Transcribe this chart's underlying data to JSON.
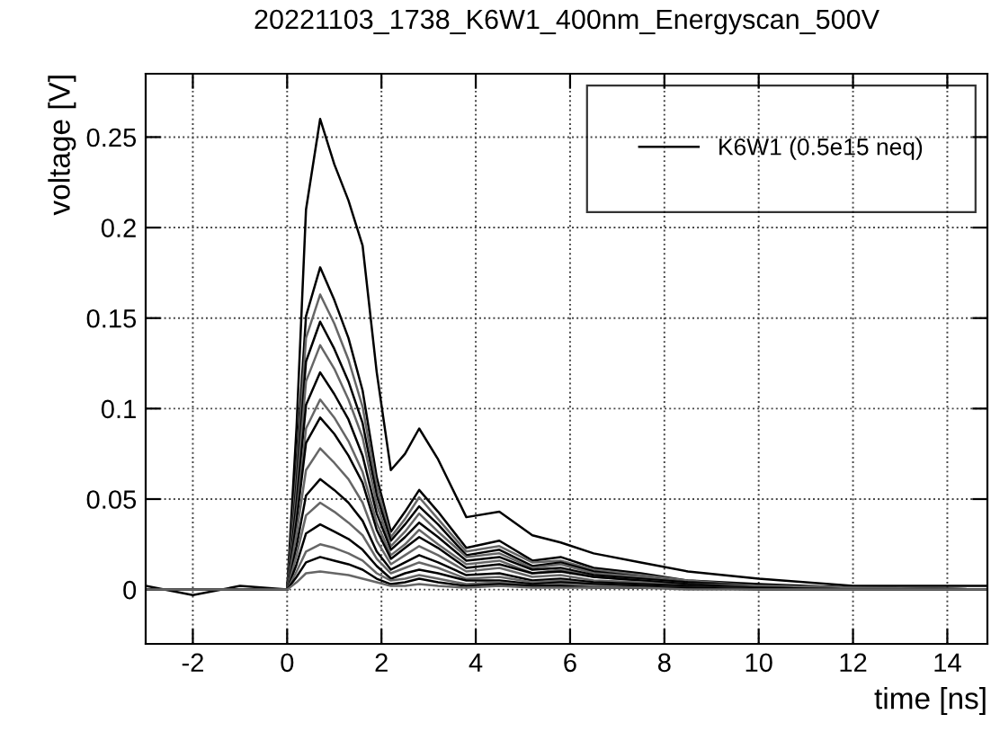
{
  "chart_data": {
    "type": "line",
    "title": "20221103_1738_K6W1_400nm_Energyscan_500V",
    "xlabel": "time [ns]",
    "ylabel": "voltage [V]",
    "x": [
      -3,
      -2,
      -1,
      0,
      0.2,
      0.4,
      0.7,
      1.0,
      1.3,
      1.6,
      1.9,
      2.2,
      2.5,
      2.8,
      3.2,
      3.8,
      4.5,
      5.2,
      5.8,
      6.5,
      7.5,
      8.5,
      10,
      12,
      14.85
    ],
    "xlim": [
      -3,
      14.85
    ],
    "xticks": [
      -2,
      0,
      2,
      4,
      6,
      8,
      10,
      12,
      14
    ],
    "ylim": [
      -0.03,
      0.285
    ],
    "yticks": [
      0,
      0.05,
      0.1,
      0.15,
      0.2,
      0.25
    ],
    "grid": true,
    "legend": "top right",
    "line_style": "solid",
    "marker": "none",
    "series": [
      {
        "name": "K6W1 (0.5e15 neq)",
        "color": "#000000",
        "values": [
          0.002,
          -0.003,
          0.002,
          0,
          0.09,
          0.21,
          0.26,
          0.235,
          0.215,
          0.19,
          0.12,
          0.066,
          0.075,
          0.089,
          0.072,
          0.04,
          0.043,
          0.03,
          0.026,
          0.02,
          0.015,
          0.01,
          0.006,
          0.002,
          0.002
        ]
      },
      {
        "color": "#000000",
        "values": [
          0,
          0,
          0,
          0,
          0.071,
          0.151,
          0.178,
          0.16,
          0.139,
          0.11,
          0.062,
          0.032,
          0.043,
          0.055,
          0.043,
          0.023,
          0.027,
          0.016,
          0.018,
          0.012,
          0.009,
          0.005,
          0.003,
          0.001,
          0
        ]
      },
      {
        "color": "#666666",
        "values": [
          0,
          0,
          0,
          0,
          0.065,
          0.139,
          0.163,
          0.147,
          0.127,
          0.101,
          0.057,
          0.029,
          0.039,
          0.051,
          0.039,
          0.021,
          0.024,
          0.015,
          0.016,
          0.011,
          0.008,
          0.005,
          0.002,
          0.001,
          0
        ]
      },
      {
        "color": "#000000",
        "values": [
          0,
          0,
          0,
          0,
          0.059,
          0.126,
          0.148,
          0.133,
          0.115,
          0.092,
          0.052,
          0.027,
          0.036,
          0.046,
          0.036,
          0.019,
          0.022,
          0.013,
          0.015,
          0.01,
          0.007,
          0.004,
          0.002,
          0.001,
          0
        ]
      },
      {
        "color": "#666666",
        "values": [
          0,
          0,
          0,
          0,
          0.054,
          0.115,
          0.135,
          0.122,
          0.105,
          0.084,
          0.047,
          0.024,
          0.032,
          0.042,
          0.032,
          0.018,
          0.02,
          0.012,
          0.014,
          0.009,
          0.007,
          0.004,
          0.002,
          0.001,
          0
        ]
      },
      {
        "color": "#000000",
        "values": [
          0,
          0,
          0,
          0,
          0.048,
          0.102,
          0.12,
          0.108,
          0.094,
          0.074,
          0.042,
          0.022,
          0.029,
          0.037,
          0.029,
          0.016,
          0.018,
          0.011,
          0.012,
          0.008,
          0.006,
          0.004,
          0.002,
          0.001,
          0
        ]
      },
      {
        "color": "#666666",
        "values": [
          0,
          0,
          0,
          0,
          0.042,
          0.089,
          0.105,
          0.095,
          0.082,
          0.065,
          0.037,
          0.019,
          0.025,
          0.033,
          0.025,
          0.014,
          0.016,
          0.009,
          0.011,
          0.007,
          0.005,
          0.003,
          0.002,
          0.001,
          0
        ]
      },
      {
        "color": "#000000",
        "values": [
          0,
          0,
          0,
          0,
          0.038,
          0.081,
          0.095,
          0.086,
          0.074,
          0.059,
          0.033,
          0.017,
          0.023,
          0.029,
          0.023,
          0.012,
          0.014,
          0.009,
          0.01,
          0.007,
          0.005,
          0.003,
          0.001,
          0,
          0
        ]
      },
      {
        "color": "#666666",
        "values": [
          0,
          0,
          0,
          0,
          0.031,
          0.066,
          0.078,
          0.07,
          0.061,
          0.048,
          0.027,
          0.014,
          0.019,
          0.024,
          0.019,
          0.01,
          0.012,
          0.007,
          0.008,
          0.005,
          0.004,
          0.002,
          0.001,
          0,
          0
        ]
      },
      {
        "color": "#000000",
        "values": [
          0,
          0,
          0,
          0,
          0.024,
          0.052,
          0.061,
          0.055,
          0.048,
          0.038,
          0.021,
          0.011,
          0.015,
          0.019,
          0.015,
          0.008,
          0.009,
          0.005,
          0.006,
          0.004,
          0.003,
          0.002,
          0.001,
          0,
          0
        ]
      },
      {
        "color": "#666666",
        "values": [
          0,
          0,
          0,
          0,
          0.019,
          0.041,
          0.048,
          0.043,
          0.037,
          0.03,
          0.017,
          0.009,
          0.012,
          0.015,
          0.012,
          0.006,
          0.007,
          0.004,
          0.005,
          0.003,
          0.002,
          0.001,
          0.001,
          0,
          0
        ]
      },
      {
        "color": "#000000",
        "values": [
          0,
          0,
          0,
          0,
          0.014,
          0.031,
          0.036,
          0.032,
          0.028,
          0.022,
          0.013,
          0.006,
          0.009,
          0.011,
          0.009,
          0.005,
          0.005,
          0.003,
          0.004,
          0.003,
          0.002,
          0.001,
          0.001,
          0,
          0
        ]
      },
      {
        "color": "#666666",
        "values": [
          0,
          0,
          0,
          0,
          0.01,
          0.021,
          0.025,
          0.023,
          0.02,
          0.016,
          0.009,
          0.005,
          0.006,
          0.008,
          0.006,
          0.003,
          0.004,
          0.002,
          0.003,
          0.002,
          0.001,
          0.001,
          0,
          0,
          0
        ]
      },
      {
        "color": "#000000",
        "values": [
          0,
          0,
          0,
          0,
          0.007,
          0.015,
          0.018,
          0.016,
          0.014,
          0.011,
          0.006,
          0.003,
          0.004,
          0.006,
          0.004,
          0.002,
          0.003,
          0.002,
          0.002,
          0.001,
          0.001,
          0.001,
          0,
          0,
          0
        ]
      },
      {
        "color": "#666666",
        "values": [
          0,
          0,
          0,
          0,
          0.004,
          0.009,
          0.01,
          0.009,
          0.008,
          0.006,
          0.004,
          0.002,
          0.002,
          0.003,
          0.002,
          0.001,
          0.002,
          0.001,
          0.001,
          0.001,
          0.001,
          0,
          0,
          0,
          0
        ]
      }
    ]
  }
}
